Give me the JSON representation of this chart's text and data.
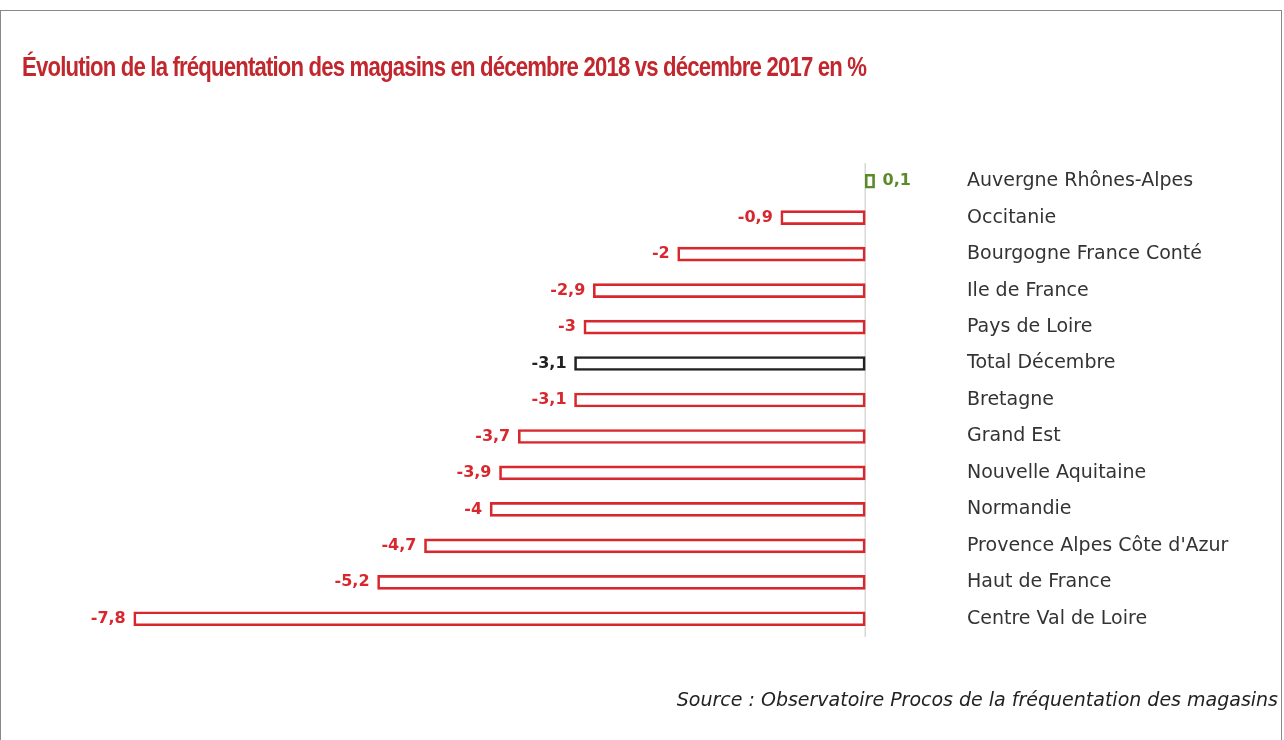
{
  "chart_data": {
    "type": "bar",
    "orientation": "horizontal",
    "title": "Évolution de la fréquentation des magasins en décembre 2018 vs décembre 2017 en %",
    "categories": [
      "Auvergne Rhônes-Alpes",
      "Occitanie",
      "Bourgogne France Conté",
      "Ile de France",
      "Pays de Loire",
      "Total Décembre",
      "Bretagne",
      "Grand Est",
      "Nouvelle Aquitaine",
      "Normandie",
      "Provence Alpes Côte d'Azur",
      "Haut de France",
      "Centre Val de Loire"
    ],
    "values": [
      0.1,
      -0.9,
      -2,
      -2.9,
      -3,
      -3.1,
      -3.1,
      -3.7,
      -3.9,
      -4,
      -4.7,
      -5.2,
      -7.8
    ],
    "value_labels": [
      "0,1",
      "-0,9",
      "-2",
      "-2,9",
      "-3",
      "-3,1",
      "-3,1",
      "-3,7",
      "-3,9",
      "-4",
      "-4,7",
      "-5,2",
      "-7,8"
    ],
    "colors": [
      "#5a8a2a",
      "#d9272e",
      "#d9272e",
      "#d9272e",
      "#d9272e",
      "#222222",
      "#d9272e",
      "#d9272e",
      "#d9272e",
      "#d9272e",
      "#d9272e",
      "#d9272e",
      "#d9272e"
    ],
    "tick_labels": "y",
    "grid": false,
    "legend": false,
    "annotations": [
      "Source : Observatoire Procos de la fréquentation des magasins"
    ]
  }
}
